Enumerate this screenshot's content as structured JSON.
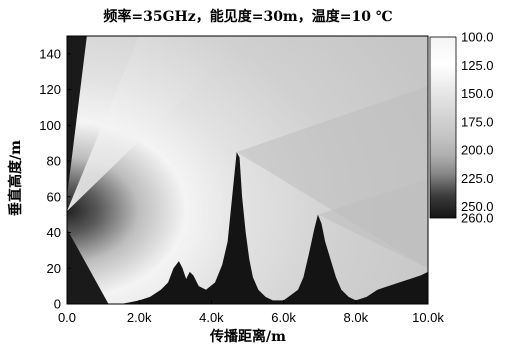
{
  "chart_data": {
    "type": "heatmap",
    "title": "频率=35GHz，能见度=30m，温度=10 ℃",
    "xlabel": "传播距离/m",
    "ylabel": "垂直高度/m",
    "xlim": [
      0,
      10000
    ],
    "ylim": [
      0,
      150
    ],
    "x_ticks": [
      {
        "value": 0,
        "label": "0.0"
      },
      {
        "value": 2000,
        "label": "2.0k"
      },
      {
        "value": 4000,
        "label": "4.0k"
      },
      {
        "value": 6000,
        "label": "6.0k"
      },
      {
        "value": 8000,
        "label": "8.0k"
      },
      {
        "value": 10000,
        "label": "10.0k"
      }
    ],
    "y_ticks": [
      {
        "value": 0,
        "label": "0"
      },
      {
        "value": 20,
        "label": "20"
      },
      {
        "value": 40,
        "label": "40"
      },
      {
        "value": 60,
        "label": "60"
      },
      {
        "value": 80,
        "label": "80"
      },
      {
        "value": 100,
        "label": "100"
      },
      {
        "value": 120,
        "label": "120"
      },
      {
        "value": 140,
        "label": "140"
      }
    ],
    "source_height": 52,
    "colorbar": {
      "min": 100,
      "max": 260,
      "ticks": [
        {
          "value": 100,
          "label": "100.0"
        },
        {
          "value": 125,
          "label": "125.0"
        },
        {
          "value": 150,
          "label": "150.0"
        },
        {
          "value": 175,
          "label": "175.0"
        },
        {
          "value": 200,
          "label": "200.0"
        },
        {
          "value": 225,
          "label": "225.0"
        },
        {
          "value": 250,
          "label": "250.0"
        },
        {
          "value": 260,
          "label": "260.0"
        }
      ],
      "low_color": "#ffffff",
      "high_color": "#151515"
    },
    "terrain": [
      [
        0,
        0
      ],
      [
        1500,
        0
      ],
      [
        2000,
        2
      ],
      [
        2300,
        4
      ],
      [
        2600,
        8
      ],
      [
        2800,
        12
      ],
      [
        2950,
        20
      ],
      [
        3100,
        24
      ],
      [
        3200,
        20
      ],
      [
        3300,
        14
      ],
      [
        3400,
        18
      ],
      [
        3500,
        16
      ],
      [
        3650,
        10
      ],
      [
        3850,
        8
      ],
      [
        4100,
        12
      ],
      [
        4300,
        22
      ],
      [
        4450,
        35
      ],
      [
        4550,
        55
      ],
      [
        4650,
        75
      ],
      [
        4700,
        85
      ],
      [
        4780,
        82
      ],
      [
        4850,
        60
      ],
      [
        4950,
        40
      ],
      [
        5050,
        25
      ],
      [
        5150,
        15
      ],
      [
        5300,
        8
      ],
      [
        5500,
        4
      ],
      [
        5700,
        2
      ],
      [
        6000,
        2
      ],
      [
        6200,
        5
      ],
      [
        6400,
        8
      ],
      [
        6550,
        15
      ],
      [
        6700,
        28
      ],
      [
        6850,
        42
      ],
      [
        6950,
        50
      ],
      [
        7050,
        45
      ],
      [
        7150,
        35
      ],
      [
        7300,
        25
      ],
      [
        7450,
        15
      ],
      [
        7600,
        8
      ],
      [
        7800,
        4
      ],
      [
        8000,
        2
      ],
      [
        8300,
        4
      ],
      [
        8600,
        8
      ],
      [
        8900,
        10
      ],
      [
        9200,
        12
      ],
      [
        9500,
        14
      ],
      [
        9800,
        16
      ],
      [
        10000,
        18
      ]
    ],
    "shadow_regions": [
      [
        [
          0,
          150
        ],
        [
          550,
          150
        ],
        [
          0,
          60
        ]
      ],
      [
        [
          0,
          42
        ],
        [
          1150,
          0
        ],
        [
          0,
          0
        ]
      ]
    ]
  }
}
